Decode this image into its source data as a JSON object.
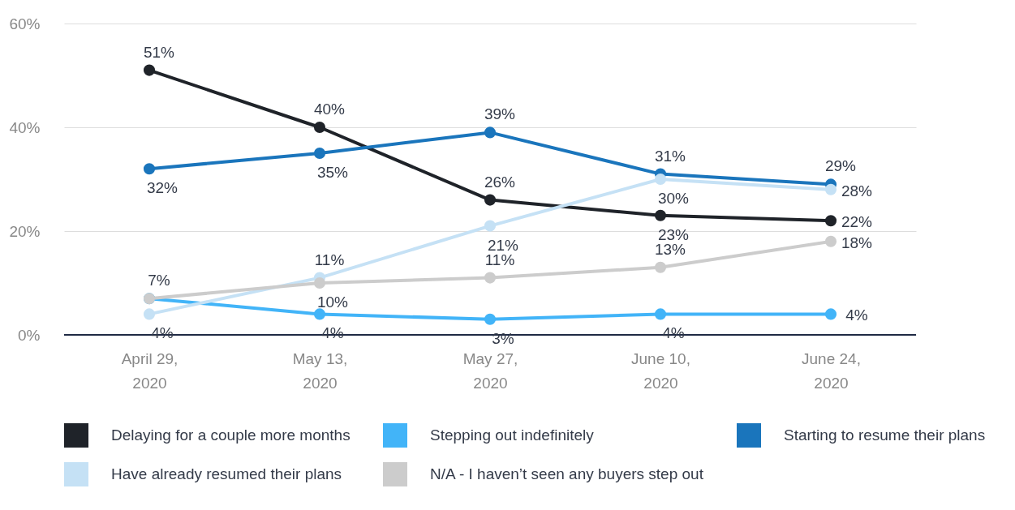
{
  "chart_data": {
    "type": "line",
    "categories": [
      "April 29, 2020",
      "May 13, 2020",
      "May 27, 2020",
      "June 10, 2020",
      "June 24, 2020"
    ],
    "series": [
      {
        "name": "Delaying for a couple more months",
        "color": "#1f2329",
        "values": [
          51,
          40,
          26,
          23,
          22
        ],
        "value_labels": [
          "51%",
          "40%",
          "26%",
          "23%",
          "22%"
        ]
      },
      {
        "name": "Stepping out indefinitely",
        "color": "#42b4f8",
        "values": [
          7,
          4,
          3,
          4,
          4
        ],
        "value_labels": [
          "7%",
          "4%",
          "3%",
          "4%",
          "4%"
        ]
      },
      {
        "name": "Starting to resume their plans",
        "color": "#1a75bc",
        "values": [
          32,
          35,
          39,
          31,
          29
        ],
        "value_labels": [
          "32%",
          "35%",
          "39%",
          "31%",
          "29%"
        ]
      },
      {
        "name": "Have already resumed their plans",
        "color": "#c5e1f5",
        "values": [
          4,
          11,
          21,
          30,
          28
        ],
        "value_labels": [
          "4%",
          "11%",
          "21%",
          "30%",
          "28%"
        ]
      },
      {
        "name": "N/A - I haven’t seen any buyers step out",
        "color": "#cccccc",
        "values": [
          7,
          10,
          11,
          13,
          18
        ],
        "value_labels": [
          null,
          "10%",
          "11%",
          "13%",
          "18%"
        ]
      }
    ],
    "ylim": [
      0,
      60
    ],
    "yticks": [
      {
        "value": 0,
        "label": "0%"
      },
      {
        "value": 20,
        "label": "20%"
      },
      {
        "value": 40,
        "label": "40%"
      },
      {
        "value": 60,
        "label": "60%"
      }
    ],
    "grid": "y",
    "legend": "bottom",
    "marker": "circle",
    "line_style": "solid"
  }
}
